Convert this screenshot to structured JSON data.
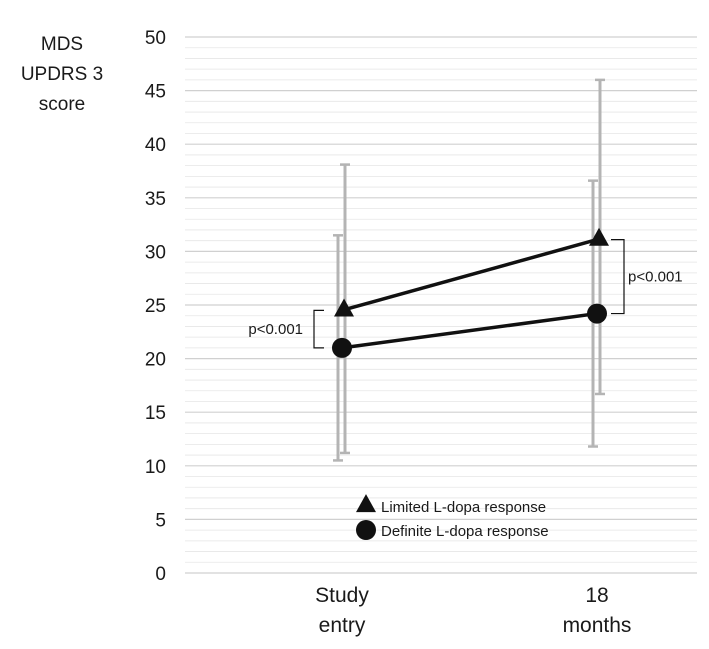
{
  "chart_data": {
    "type": "line",
    "ylabel_lines": [
      "MDS",
      "UPDRS 3",
      "score"
    ],
    "ylim": [
      0,
      50
    ],
    "yticks": [
      0,
      5,
      10,
      15,
      20,
      25,
      30,
      35,
      40,
      45,
      50
    ],
    "minor_grid_step": 1,
    "grid": true,
    "categories": [
      [
        "Study",
        "entry"
      ],
      [
        "18",
        "months"
      ]
    ],
    "series": [
      {
        "name": "Limited L-dopa response",
        "marker": "triangle",
        "values": [
          24.5,
          31.1
        ],
        "error_low": [
          11.2,
          16.7
        ],
        "error_high": [
          38.1,
          46.0
        ]
      },
      {
        "name": "Definite L-dopa response",
        "marker": "circle",
        "values": [
          21.0,
          24.2
        ],
        "error_low": [
          10.5,
          11.8
        ],
        "error_high": [
          31.5,
          36.6
        ]
      }
    ],
    "annotations": [
      {
        "text": "p<0.001",
        "category": 0,
        "range": [
          21.0,
          24.5
        ],
        "side": "left"
      },
      {
        "text": "p<0.001",
        "category": 1,
        "range": [
          24.2,
          31.1
        ],
        "side": "right"
      }
    ],
    "legend": {
      "placement": "bottom-center"
    },
    "colors": {
      "line": "#111111",
      "error_bar": "#b4b4b4",
      "grid": "#dcdcdc"
    }
  }
}
